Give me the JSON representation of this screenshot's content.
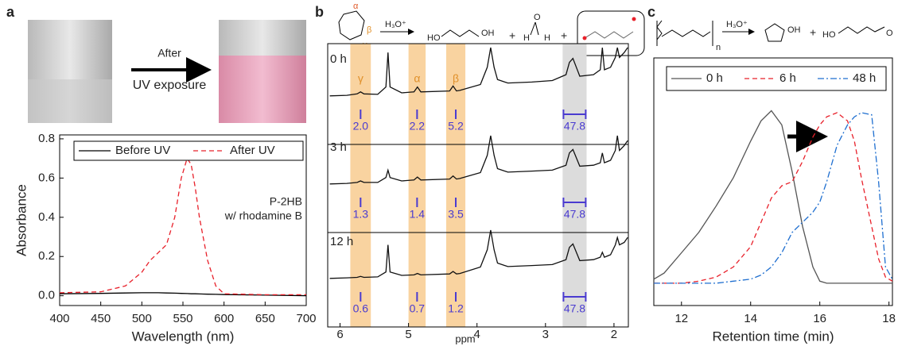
{
  "chart_data": [
    {
      "type": "line",
      "panel": "a",
      "photo_labels": [
        "After",
        "UV exposure"
      ],
      "xlabel": "Wavelength (nm)",
      "ylabel": "Absorbance",
      "annotations": [
        "P-2HB",
        "w/ rhodamine B"
      ],
      "xlim": [
        400,
        700
      ],
      "ylim": [
        -0.05,
        0.82
      ],
      "xticks": [
        400,
        450,
        500,
        550,
        600,
        650,
        700
      ],
      "yticks": [
        {
          "value": 0,
          "label": "0.0"
        },
        0.2,
        0.4,
        0.6,
        0.8
      ],
      "legend": "top",
      "x": [
        400,
        450,
        480,
        500,
        510,
        520,
        530,
        540,
        548,
        555,
        560,
        565,
        570,
        580,
        590,
        600,
        650,
        700
      ],
      "series": [
        {
          "name": "Before UV",
          "color": "#000000",
          "linestyle": "solid",
          "values": [
            0.01,
            0.012,
            0.014,
            0.015,
            0.015,
            0.015,
            0.014,
            0.013,
            0.012,
            0.011,
            0.01,
            0.01,
            0.009,
            0.008,
            0.007,
            0.006,
            0.003,
            0.0
          ]
        },
        {
          "name": "After UV",
          "color": "#e8202a",
          "linestyle": "dashed",
          "values": [
            0.015,
            0.02,
            0.05,
            0.12,
            0.18,
            0.22,
            0.26,
            0.4,
            0.6,
            0.7,
            0.67,
            0.55,
            0.4,
            0.18,
            0.05,
            0.01,
            0.005,
            0.005
          ]
        }
      ]
    },
    {
      "type": "stacked-spectra",
      "panel": "b",
      "scheme": [
        "H₃O⁺",
        "HO",
        "OH",
        "+",
        "H",
        "O",
        "+"
      ],
      "xlabel": "ppm",
      "xlim": [
        6.18,
        1.79
      ],
      "xticks": [
        6,
        5,
        4,
        3,
        2
      ],
      "bands": [
        {
          "label": "γ",
          "range": [
            5.85,
            5.55
          ],
          "color": "#f9d3a0"
        },
        {
          "label": "α",
          "range": [
            5.0,
            4.75
          ],
          "color": "#f9d3a0"
        },
        {
          "label": "β",
          "range": [
            4.45,
            4.17
          ],
          "color": "#f9d3a0"
        },
        {
          "range": [
            2.75,
            2.4
          ],
          "color": "#dcdcdc"
        }
      ],
      "x": [
        6.15,
        5.9,
        5.75,
        5.7,
        5.65,
        5.45,
        5.33,
        5.3,
        5.27,
        5.1,
        4.92,
        4.87,
        4.82,
        4.4,
        4.35,
        4.3,
        4.25,
        3.95,
        3.85,
        3.8,
        3.75,
        3.7,
        3.55,
        3.2,
        2.9,
        2.7,
        2.65,
        2.6,
        2.55,
        2.5,
        2.3,
        2.2,
        2.17,
        2.14,
        2.05,
        1.98,
        1.95,
        1.92,
        1.85,
        1.8
      ],
      "series": [
        {
          "name": "0 h",
          "color": "#111111",
          "integrals": [
            "2.0",
            "2.2",
            "5.2",
            "47.8"
          ],
          "values": [
            0.02,
            0.03,
            0.06,
            0.1,
            0.06,
            0.05,
            0.2,
            0.9,
            0.2,
            0.08,
            0.1,
            0.2,
            0.1,
            0.12,
            0.22,
            0.12,
            0.13,
            0.25,
            0.6,
            1.0,
            0.6,
            0.35,
            0.28,
            0.3,
            0.33,
            0.45,
            0.7,
            0.78,
            0.6,
            0.42,
            0.45,
            0.55,
            1.0,
            0.55,
            0.6,
            0.8,
            1.0,
            0.8,
            0.9,
            1.0
          ]
        },
        {
          "name": "3 h",
          "color": "#111111",
          "integrals": [
            "1.3",
            "1.4",
            "3.5",
            "47.8"
          ],
          "values": [
            0.02,
            0.03,
            0.05,
            0.08,
            0.05,
            0.05,
            0.15,
            0.3,
            0.15,
            0.08,
            0.1,
            0.16,
            0.1,
            0.12,
            0.18,
            0.12,
            0.13,
            0.25,
            0.6,
            1.0,
            0.6,
            0.33,
            0.26,
            0.28,
            0.3,
            0.4,
            0.65,
            0.72,
            0.55,
            0.38,
            0.4,
            0.45,
            0.65,
            0.45,
            0.5,
            0.7,
            1.0,
            0.7,
            0.8,
            0.9
          ]
        },
        {
          "name": "12 h",
          "color": "#111111",
          "integrals": [
            "0.6",
            "0.7",
            "1.2",
            "47.8"
          ],
          "values": [
            0.02,
            0.03,
            0.04,
            0.06,
            0.04,
            0.05,
            0.15,
            0.7,
            0.15,
            0.08,
            0.09,
            0.12,
            0.09,
            0.11,
            0.16,
            0.11,
            0.12,
            0.25,
            0.6,
            1.0,
            0.6,
            0.33,
            0.26,
            0.28,
            0.3,
            0.4,
            0.65,
            0.72,
            0.55,
            0.38,
            0.4,
            0.45,
            0.55,
            0.45,
            0.5,
            0.7,
            0.85,
            0.7,
            0.75,
            0.85
          ]
        }
      ]
    },
    {
      "type": "line",
      "panel": "c",
      "scheme": [
        "H₃O⁺",
        "OH",
        "+",
        "HO",
        "O",
        "n"
      ],
      "xlabel": "Retention time (min)",
      "xlim": [
        11.2,
        18.1
      ],
      "ylim": [
        -0.11,
        1.11
      ],
      "xticks": [
        12,
        14,
        16,
        18
      ],
      "legend": "top",
      "x": [
        11.2,
        11.5,
        12,
        12.5,
        13,
        13.5,
        14,
        14.3,
        14.6,
        14.9,
        15.2,
        15.5,
        15.8,
        16,
        16.2,
        16.5,
        16.8,
        17,
        17.2,
        17.5,
        17.7,
        17.9,
        18.1
      ],
      "series": [
        {
          "name": "0 h",
          "color": "#555555",
          "linestyle": "solid",
          "values": [
            0.02,
            0.05,
            0.15,
            0.25,
            0.38,
            0.52,
            0.7,
            0.8,
            0.85,
            0.78,
            0.55,
            0.28,
            0.08,
            0.01,
            0,
            0,
            0,
            0,
            0,
            0,
            0,
            0,
            0
          ]
        },
        {
          "name": "6 h",
          "color": "#e8202a",
          "linestyle": "dashed",
          "values": [
            0,
            0,
            0,
            0.01,
            0.03,
            0.08,
            0.18,
            0.3,
            0.42,
            0.48,
            0.5,
            0.6,
            0.72,
            0.78,
            0.82,
            0.84,
            0.8,
            0.7,
            0.52,
            0.28,
            0.12,
            0.03,
            0.01
          ]
        },
        {
          "name": "48 h",
          "color": "#1f6fd0",
          "linestyle": "dashdot",
          "values": [
            0,
            0,
            0,
            0,
            0,
            0.01,
            0.02,
            0.04,
            0.08,
            0.15,
            0.25,
            0.3,
            0.35,
            0.4,
            0.5,
            0.68,
            0.78,
            0.82,
            0.84,
            0.83,
            0.5,
            0.08,
            0.02
          ]
        }
      ]
    }
  ]
}
